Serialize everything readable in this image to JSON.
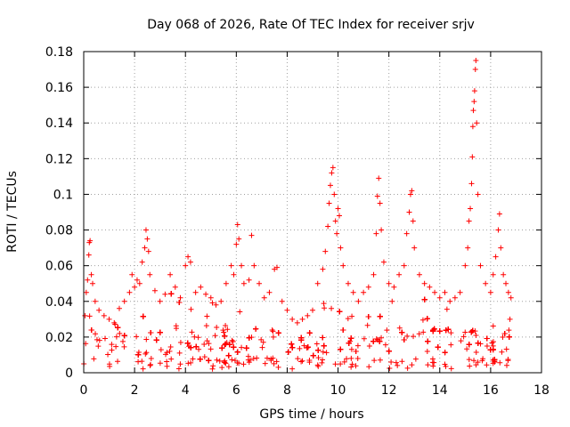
{
  "chart_data": {
    "type": "scatter",
    "title": "Day 068 of 2026, Rate Of TEC Index for receiver srjv",
    "xlabel": "GPS time / hours",
    "ylabel": "ROTI / TECUs",
    "xlim": [
      0,
      18
    ],
    "ylim": [
      0,
      0.18
    ],
    "x_ticks": [
      "0",
      "2",
      "4",
      "6",
      "8",
      "10",
      "12",
      "14",
      "16",
      "18"
    ],
    "y_ticks": [
      "0",
      "0.02",
      "0.04",
      "0.06",
      "0.08",
      "0.1",
      "0.12",
      "0.14",
      "0.16",
      "0.18"
    ],
    "grid": true,
    "marker": "+",
    "color": "#ff0000",
    "series": [
      {
        "name": "ROTI",
        "description_of_bulk": "dense band of points from 0.003 to ~0.045 TECU/s across 0-16.8 h, median ~0.015",
        "points": [
          [
            0.05,
            0.032
          ],
          [
            0.1,
            0.045
          ],
          [
            0.15,
            0.052
          ],
          [
            0.2,
            0.066
          ],
          [
            0.22,
            0.073
          ],
          [
            0.25,
            0.074
          ],
          [
            0.3,
            0.055
          ],
          [
            0.35,
            0.05
          ],
          [
            0.45,
            0.04
          ],
          [
            0.6,
            0.035
          ],
          [
            0.8,
            0.032
          ],
          [
            1.0,
            0.03
          ],
          [
            1.2,
            0.028
          ],
          [
            1.4,
            0.036
          ],
          [
            1.6,
            0.04
          ],
          [
            1.8,
            0.045
          ],
          [
            1.9,
            0.055
          ],
          [
            2.0,
            0.048
          ],
          [
            2.1,
            0.052
          ],
          [
            2.2,
            0.05
          ],
          [
            2.3,
            0.062
          ],
          [
            2.4,
            0.07
          ],
          [
            2.45,
            0.08
          ],
          [
            2.5,
            0.075
          ],
          [
            2.55,
            0.068
          ],
          [
            2.6,
            0.055
          ],
          [
            2.8,
            0.046
          ],
          [
            3.0,
            0.04
          ],
          [
            3.2,
            0.044
          ],
          [
            3.4,
            0.055
          ],
          [
            3.6,
            0.048
          ],
          [
            3.8,
            0.042
          ],
          [
            4.0,
            0.06
          ],
          [
            4.1,
            0.065
          ],
          [
            4.2,
            0.062
          ],
          [
            4.4,
            0.045
          ],
          [
            4.6,
            0.048
          ],
          [
            4.8,
            0.044
          ],
          [
            5.0,
            0.042
          ],
          [
            5.2,
            0.038
          ],
          [
            5.4,
            0.04
          ],
          [
            5.6,
            0.05
          ],
          [
            5.8,
            0.06
          ],
          [
            5.9,
            0.055
          ],
          [
            6.0,
            0.072
          ],
          [
            6.05,
            0.083
          ],
          [
            6.1,
            0.075
          ],
          [
            6.2,
            0.06
          ],
          [
            6.3,
            0.05
          ],
          [
            6.5,
            0.052
          ],
          [
            6.6,
            0.077
          ],
          [
            6.7,
            0.06
          ],
          [
            6.9,
            0.05
          ],
          [
            7.1,
            0.042
          ],
          [
            7.3,
            0.045
          ],
          [
            7.5,
            0.058
          ],
          [
            7.6,
            0.059
          ],
          [
            7.8,
            0.04
          ],
          [
            8.0,
            0.035
          ],
          [
            8.2,
            0.03
          ],
          [
            8.4,
            0.028
          ],
          [
            8.6,
            0.03
          ],
          [
            8.8,
            0.032
          ],
          [
            9.0,
            0.035
          ],
          [
            9.2,
            0.05
          ],
          [
            9.4,
            0.058
          ],
          [
            9.5,
            0.068
          ],
          [
            9.6,
            0.082
          ],
          [
            9.65,
            0.095
          ],
          [
            9.7,
            0.105
          ],
          [
            9.75,
            0.112
          ],
          [
            9.8,
            0.115
          ],
          [
            9.85,
            0.1
          ],
          [
            9.9,
            0.085
          ],
          [
            9.95,
            0.078
          ],
          [
            10.0,
            0.092
          ],
          [
            10.05,
            0.088
          ],
          [
            10.1,
            0.07
          ],
          [
            10.2,
            0.06
          ],
          [
            10.4,
            0.05
          ],
          [
            10.6,
            0.045
          ],
          [
            10.8,
            0.04
          ],
          [
            11.0,
            0.045
          ],
          [
            11.2,
            0.048
          ],
          [
            11.4,
            0.055
          ],
          [
            11.5,
            0.078
          ],
          [
            11.55,
            0.099
          ],
          [
            11.6,
            0.109
          ],
          [
            11.65,
            0.095
          ],
          [
            11.7,
            0.08
          ],
          [
            11.8,
            0.062
          ],
          [
            12.0,
            0.05
          ],
          [
            12.2,
            0.048
          ],
          [
            12.4,
            0.055
          ],
          [
            12.6,
            0.06
          ],
          [
            12.7,
            0.078
          ],
          [
            12.8,
            0.09
          ],
          [
            12.85,
            0.1
          ],
          [
            12.9,
            0.102
          ],
          [
            12.95,
            0.085
          ],
          [
            13.0,
            0.07
          ],
          [
            13.2,
            0.055
          ],
          [
            13.4,
            0.05
          ],
          [
            13.6,
            0.048
          ],
          [
            13.8,
            0.045
          ],
          [
            14.0,
            0.042
          ],
          [
            14.2,
            0.045
          ],
          [
            14.4,
            0.04
          ],
          [
            14.6,
            0.042
          ],
          [
            14.8,
            0.045
          ],
          [
            15.0,
            0.06
          ],
          [
            15.1,
            0.07
          ],
          [
            15.15,
            0.085
          ],
          [
            15.2,
            0.092
          ],
          [
            15.25,
            0.106
          ],
          [
            15.28,
            0.121
          ],
          [
            15.3,
            0.138
          ],
          [
            15.32,
            0.147
          ],
          [
            15.35,
            0.152
          ],
          [
            15.37,
            0.158
          ],
          [
            15.4,
            0.17
          ],
          [
            15.42,
            0.175
          ],
          [
            15.45,
            0.14
          ],
          [
            15.5,
            0.1
          ],
          [
            15.6,
            0.06
          ],
          [
            15.8,
            0.05
          ],
          [
            16.0,
            0.045
          ],
          [
            16.1,
            0.055
          ],
          [
            16.2,
            0.065
          ],
          [
            16.3,
            0.08
          ],
          [
            16.35,
            0.089
          ],
          [
            16.4,
            0.07
          ],
          [
            16.5,
            0.055
          ],
          [
            16.6,
            0.05
          ],
          [
            16.7,
            0.045
          ],
          [
            16.8,
            0.042
          ]
        ]
      }
    ]
  }
}
